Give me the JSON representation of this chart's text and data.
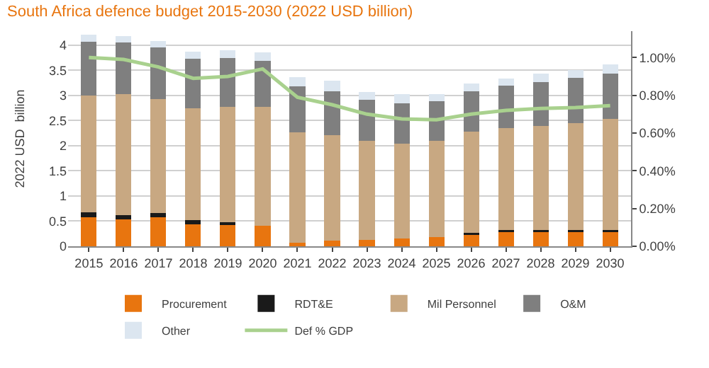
{
  "chart_data": {
    "type": "bar",
    "stacked": true,
    "title": "South Africa defence budget 2015-2030 (2022 USD billion)",
    "ylabel": "2022 USD  billion",
    "categories": [
      "2015",
      "2016",
      "2017",
      "2018",
      "2019",
      "2020",
      "2021",
      "2022",
      "2023",
      "2024",
      "2025",
      "2026",
      "2027",
      "2028",
      "2029",
      "2030"
    ],
    "series": [
      {
        "name": "Procurement",
        "color": "#e8750f",
        "values": [
          0.58,
          0.54,
          0.58,
          0.43,
          0.42,
          0.41,
          0.07,
          0.11,
          0.13,
          0.15,
          0.19,
          0.25,
          0.29,
          0.29,
          0.3,
          0.3
        ]
      },
      {
        "name": "RDT&E",
        "color": "#1a1a1a",
        "values": [
          0.09,
          0.08,
          0.08,
          0.09,
          0.06,
          0,
          0,
          0,
          0,
          0,
          0,
          0.02,
          0.03,
          0.03,
          0.03,
          0.03
        ]
      },
      {
        "name": "Mil Personnel",
        "color": "#c8a882",
        "values": [
          2.33,
          2.41,
          2.27,
          2.22,
          2.29,
          2.36,
          2.19,
          2.1,
          1.97,
          1.89,
          1.91,
          2.01,
          2.03,
          2.07,
          2.12,
          2.2
        ]
      },
      {
        "name": "O&M",
        "color": "#7f7f7f",
        "values": [
          1.07,
          1.02,
          1.02,
          0.99,
          0.98,
          0.92,
          0.92,
          0.87,
          0.81,
          0.81,
          0.78,
          0.81,
          0.84,
          0.87,
          0.9,
          0.91
        ]
      },
      {
        "name": "Other",
        "color": "#dce6f0",
        "values": [
          0.14,
          0.13,
          0.13,
          0.14,
          0.15,
          0.17,
          0.18,
          0.22,
          0.16,
          0.18,
          0.15,
          0.15,
          0.15,
          0.18,
          0.15,
          0.18
        ]
      },
      {
        "name": "Def % GDP",
        "type": "line",
        "axis": "y2",
        "color": "#a9d18e",
        "values": [
          1.0,
          0.99,
          0.95,
          0.89,
          0.9,
          0.94,
          0.79,
          0.75,
          0.7,
          0.675,
          0.67,
          0.7,
          0.72,
          0.73,
          0.735,
          0.745
        ]
      }
    ],
    "ylim": [
      0,
      4.28
    ],
    "yticks": [
      {
        "value": 0,
        "label": "0"
      },
      {
        "value": 0.5,
        "label": "0.5"
      },
      {
        "value": 1,
        "label": "1"
      },
      {
        "value": 1.5,
        "label": "1.5"
      },
      {
        "value": 2,
        "label": "2"
      },
      {
        "value": 2.5,
        "label": "2.5"
      },
      {
        "value": 3,
        "label": "3"
      },
      {
        "value": 3.5,
        "label": "3.5"
      },
      {
        "value": 4,
        "label": "4"
      }
    ],
    "y2lim": [
      0,
      1.14
    ],
    "y2ticks": [
      {
        "value": 0,
        "label": "0.00%"
      },
      {
        "value": 0.2,
        "label": "0.20%"
      },
      {
        "value": 0.4,
        "label": "0.40%"
      },
      {
        "value": 0.6,
        "label": "0.60%"
      },
      {
        "value": 0.8,
        "label": "0.80%"
      },
      {
        "value": 1.0,
        "label": "1.00%"
      }
    ],
    "grid": "y",
    "legend": "bottom",
    "marker": "none",
    "line_style": "solid"
  }
}
